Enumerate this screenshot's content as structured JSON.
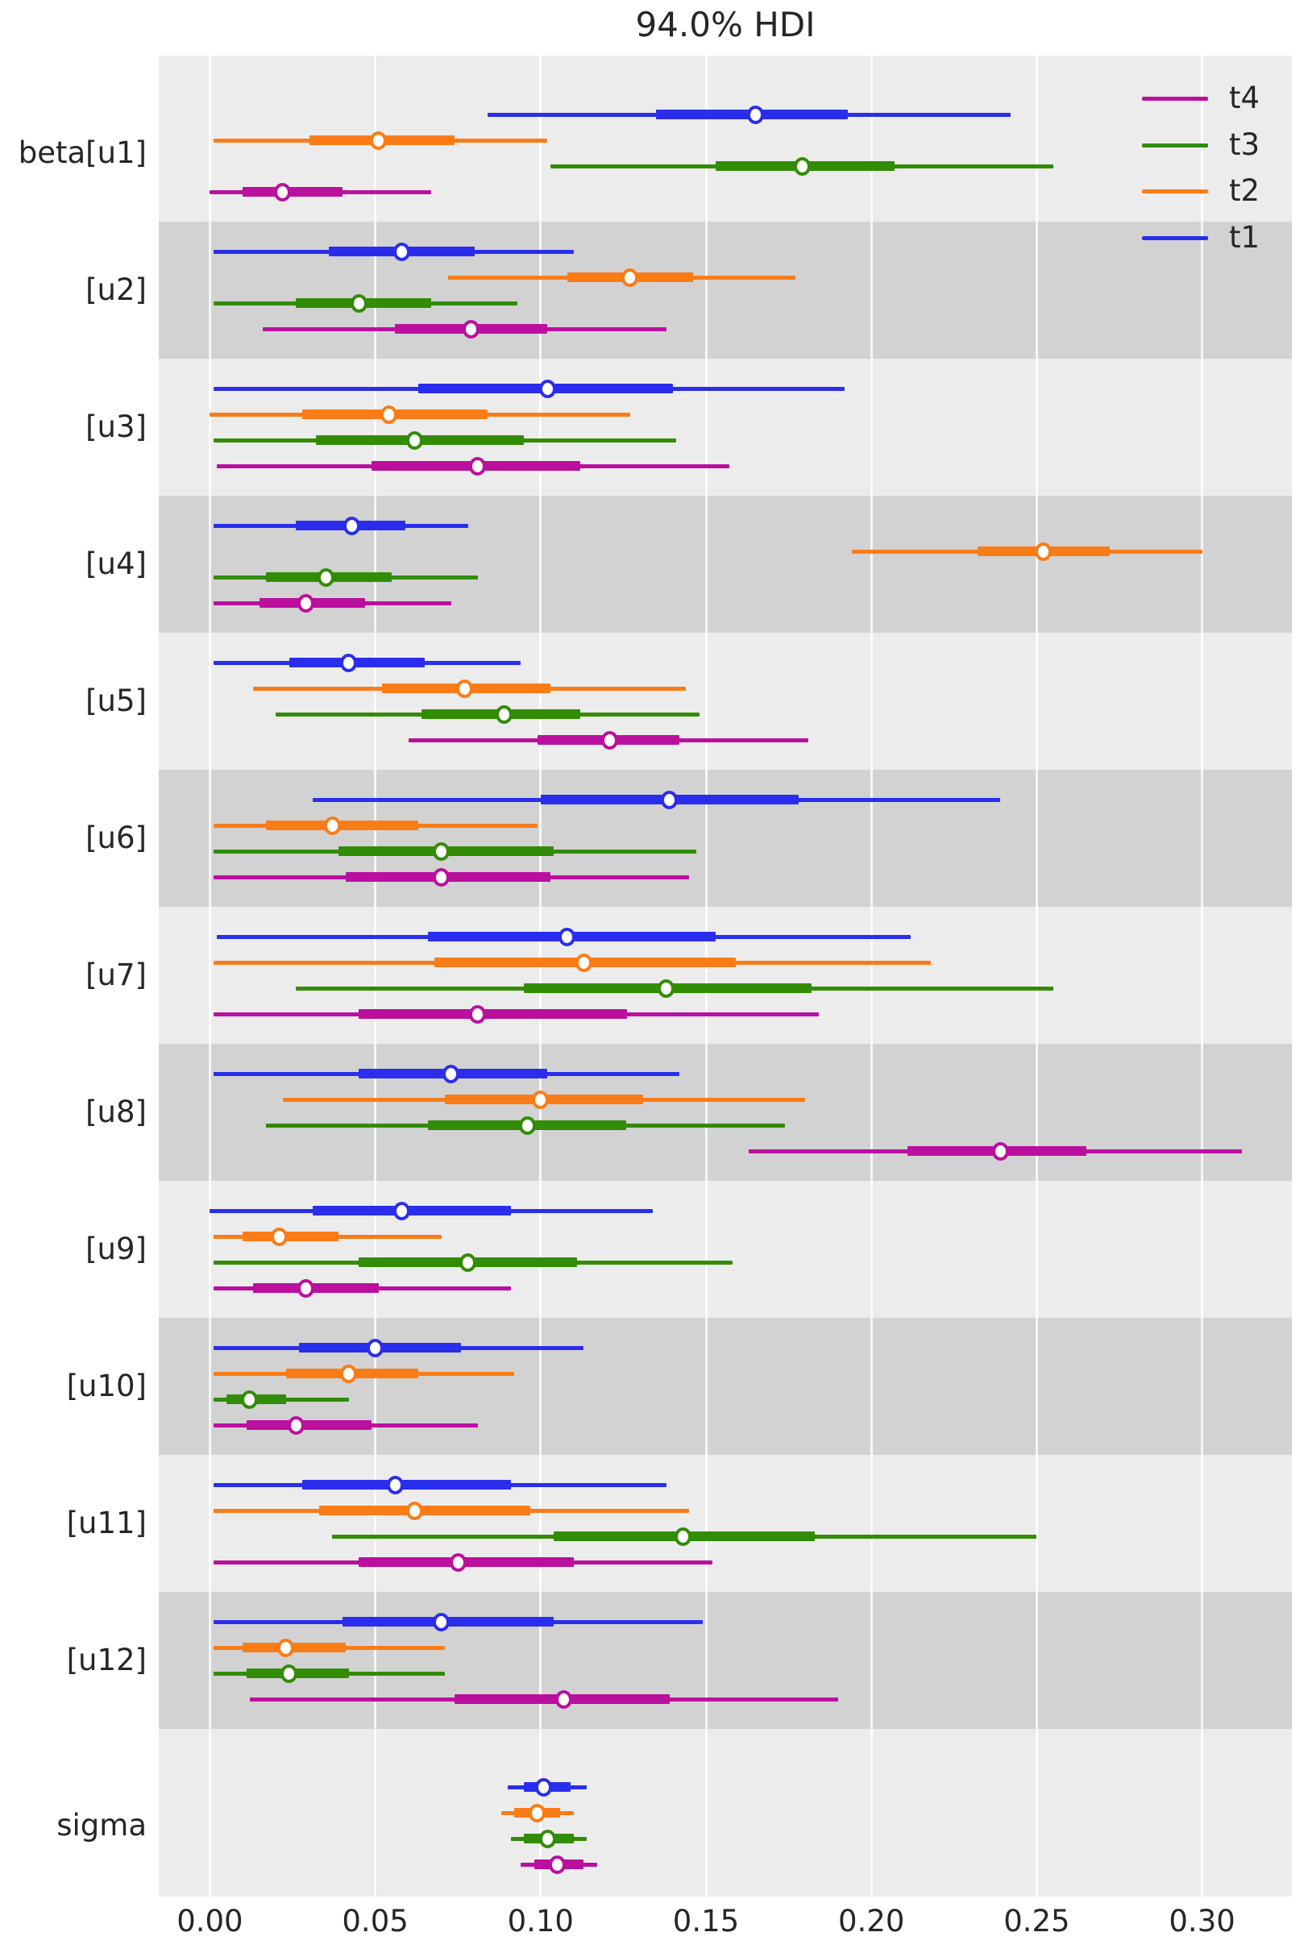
{
  "title": "94.0% HDI",
  "legend": {
    "entries": [
      {
        "label": "t4",
        "color": "#bb0f9e"
      },
      {
        "label": "t3",
        "color": "#328c06"
      },
      {
        "label": "t2",
        "color": "#fa7c17"
      },
      {
        "label": "t1",
        "color": "#2a2eec"
      }
    ]
  },
  "chart_data": {
    "type": "forest",
    "title": "94.0% HDI",
    "hdi_probability": "94.0%",
    "xlabel": "",
    "ylabel": "",
    "grid": true,
    "legend_position": "upper right",
    "x_ticks": [
      {
        "label": "0.00",
        "value": 0.0
      },
      {
        "label": "0.05",
        "value": 0.05
      },
      {
        "label": "0.10",
        "value": 0.1
      },
      {
        "label": "0.15",
        "value": 0.15
      },
      {
        "label": "0.20",
        "value": 0.2
      },
      {
        "label": "0.25",
        "value": 0.25
      },
      {
        "label": "0.30",
        "value": 0.3
      }
    ],
    "xlim": [
      -0.0155,
      0.327
    ],
    "series_order": [
      "t1",
      "t2",
      "t3",
      "t4"
    ],
    "colors": {
      "t1": "#2a2eec",
      "t2": "#fa7c17",
      "t3": "#328c06",
      "t4": "#bb0f9e"
    },
    "interval_format": [
      "hdi_low",
      "quartile_low",
      "median",
      "quartile_high",
      "hdi_high"
    ],
    "rows": [
      {
        "label": "beta[u1]",
        "t1": [
          0.084,
          0.135,
          0.165,
          0.193,
          0.242
        ],
        "t2": [
          0.001,
          0.03,
          0.051,
          0.074,
          0.102
        ],
        "t3": [
          0.103,
          0.153,
          0.179,
          0.207,
          0.255
        ],
        "t4": [
          0.0,
          0.01,
          0.022,
          0.04,
          0.067
        ]
      },
      {
        "label": "[u2]",
        "t1": [
          0.001,
          0.036,
          0.058,
          0.08,
          0.11
        ],
        "t2": [
          0.072,
          0.108,
          0.127,
          0.146,
          0.177
        ],
        "t3": [
          0.001,
          0.026,
          0.045,
          0.067,
          0.093
        ],
        "t4": [
          0.016,
          0.056,
          0.079,
          0.102,
          0.138
        ]
      },
      {
        "label": "[u3]",
        "t1": [
          0.001,
          0.063,
          0.102,
          0.14,
          0.192
        ],
        "t2": [
          0.0,
          0.028,
          0.054,
          0.084,
          0.127
        ],
        "t3": [
          0.001,
          0.032,
          0.062,
          0.095,
          0.141
        ],
        "t4": [
          0.002,
          0.049,
          0.081,
          0.112,
          0.157
        ]
      },
      {
        "label": "[u4]",
        "t1": [
          0.001,
          0.026,
          0.043,
          0.059,
          0.078
        ],
        "t2": [
          0.194,
          0.232,
          0.252,
          0.272,
          0.3
        ],
        "t3": [
          0.001,
          0.017,
          0.035,
          0.055,
          0.081
        ],
        "t4": [
          0.001,
          0.015,
          0.029,
          0.047,
          0.073
        ]
      },
      {
        "label": "[u5]",
        "t1": [
          0.001,
          0.024,
          0.042,
          0.065,
          0.094
        ],
        "t2": [
          0.013,
          0.052,
          0.077,
          0.103,
          0.144
        ],
        "t3": [
          0.02,
          0.064,
          0.089,
          0.112,
          0.148
        ],
        "t4": [
          0.06,
          0.099,
          0.121,
          0.142,
          0.181
        ]
      },
      {
        "label": "[u6]",
        "t1": [
          0.031,
          0.1,
          0.139,
          0.178,
          0.239
        ],
        "t2": [
          0.001,
          0.017,
          0.037,
          0.063,
          0.099
        ],
        "t3": [
          0.001,
          0.039,
          0.07,
          0.104,
          0.147
        ],
        "t4": [
          0.001,
          0.041,
          0.07,
          0.103,
          0.145
        ]
      },
      {
        "label": "[u7]",
        "t1": [
          0.002,
          0.066,
          0.108,
          0.153,
          0.212
        ],
        "t2": [
          0.001,
          0.068,
          0.113,
          0.159,
          0.218
        ],
        "t3": [
          0.026,
          0.095,
          0.138,
          0.182,
          0.255
        ],
        "t4": [
          0.001,
          0.045,
          0.081,
          0.126,
          0.184
        ]
      },
      {
        "label": "[u8]",
        "t1": [
          0.001,
          0.045,
          0.073,
          0.102,
          0.142
        ],
        "t2": [
          0.022,
          0.071,
          0.1,
          0.131,
          0.18
        ],
        "t3": [
          0.017,
          0.066,
          0.096,
          0.126,
          0.174
        ],
        "t4": [
          0.163,
          0.211,
          0.239,
          0.265,
          0.312
        ]
      },
      {
        "label": "[u9]",
        "t1": [
          0.0,
          0.031,
          0.058,
          0.091,
          0.134
        ],
        "t2": [
          0.001,
          0.01,
          0.021,
          0.039,
          0.07
        ],
        "t3": [
          0.001,
          0.045,
          0.078,
          0.111,
          0.158
        ],
        "t4": [
          0.001,
          0.013,
          0.029,
          0.051,
          0.091
        ]
      },
      {
        "label": "[u10]",
        "t1": [
          0.001,
          0.027,
          0.05,
          0.076,
          0.113
        ],
        "t2": [
          0.001,
          0.023,
          0.042,
          0.063,
          0.092
        ],
        "t3": [
          0.001,
          0.005,
          0.012,
          0.023,
          0.042
        ],
        "t4": [
          0.001,
          0.011,
          0.026,
          0.049,
          0.081
        ]
      },
      {
        "label": "[u11]",
        "t1": [
          0.001,
          0.028,
          0.056,
          0.091,
          0.138
        ],
        "t2": [
          0.001,
          0.033,
          0.062,
          0.097,
          0.145
        ],
        "t3": [
          0.037,
          0.104,
          0.143,
          0.183,
          0.25
        ],
        "t4": [
          0.001,
          0.045,
          0.075,
          0.11,
          0.152
        ]
      },
      {
        "label": "[u12]",
        "t1": [
          0.001,
          0.04,
          0.07,
          0.104,
          0.149
        ],
        "t2": [
          0.001,
          0.01,
          0.023,
          0.041,
          0.071
        ],
        "t3": [
          0.001,
          0.011,
          0.024,
          0.042,
          0.071
        ],
        "t4": [
          0.012,
          0.074,
          0.107,
          0.139,
          0.19
        ]
      },
      {
        "label": "sigma",
        "t1": [
          0.09,
          0.095,
          0.101,
          0.109,
          0.114
        ],
        "t2": [
          0.088,
          0.092,
          0.099,
          0.106,
          0.11
        ],
        "t3": [
          0.091,
          0.095,
          0.102,
          0.11,
          0.114
        ],
        "t4": [
          0.094,
          0.098,
          0.105,
          0.113,
          0.117
        ]
      }
    ]
  }
}
